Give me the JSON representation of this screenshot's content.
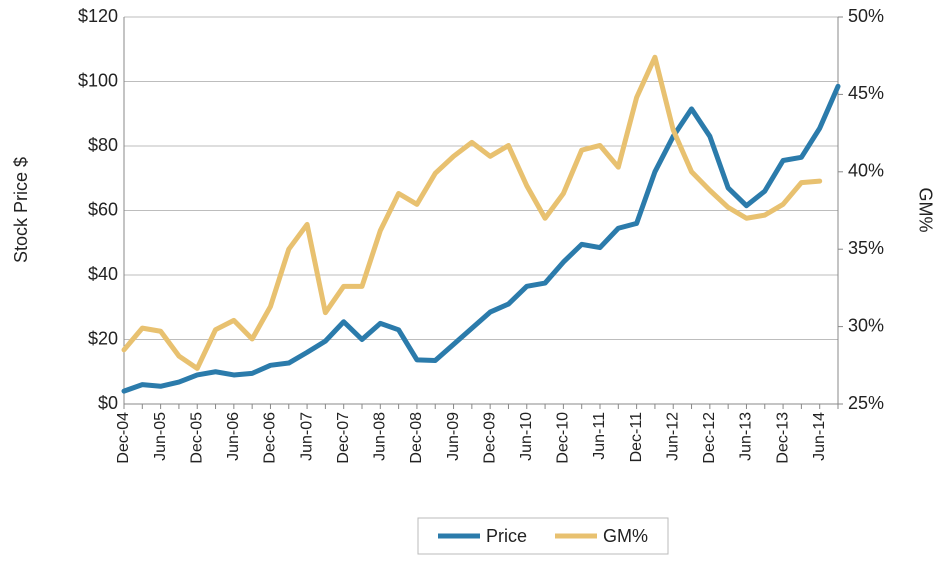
{
  "chart_data": {
    "type": "line",
    "y_label": "Stock Price $",
    "y2_label": "GM%",
    "categories": [
      "Dec-04",
      null,
      "Jun-05",
      null,
      "Dec-05",
      null,
      "Jun-06",
      null,
      "Dec-06",
      null,
      "Jun-07",
      null,
      "Dec-07",
      null,
      "Jun-08",
      null,
      "Dec-08",
      null,
      "Jun-09",
      null,
      "Dec-09",
      null,
      "Jun-10",
      null,
      "Dec-10",
      null,
      "Jun-11",
      null,
      "Dec-11",
      null,
      "Jun-12",
      null,
      "Dec-12",
      null,
      "Jun-13",
      null,
      "Dec-13",
      null,
      "Jun-14",
      null
    ],
    "series": [
      {
        "name": "Price",
        "color": "#2b7bab",
        "axis": "y",
        "values": [
          4,
          6,
          5.5,
          6.8,
          9,
          10,
          9,
          9.5,
          12,
          12.7,
          16,
          19.5,
          25.5,
          20,
          25,
          23,
          13.7,
          13.5,
          18.5,
          23.5,
          28.5,
          31,
          36.5,
          37.5,
          44,
          49.5,
          48.5,
          54.5,
          56,
          72,
          83,
          91.5,
          83,
          67,
          61.5,
          66,
          75.5,
          76.5,
          85.5,
          98.5
        ]
      },
      {
        "name": "GM%",
        "color": "#e8c170",
        "axis": "y2",
        "values": [
          28.5,
          29.9,
          29.7,
          28.1,
          27.3,
          29.8,
          30.4,
          29.2,
          31.3,
          35,
          36.6,
          30.9,
          32.6,
          32.6,
          36.2,
          38.6,
          37.9,
          39.9,
          41,
          41.9,
          41,
          41.7,
          39.1,
          37,
          38.6,
          41.4,
          41.7,
          40.3,
          44.8,
          47.4,
          42.7,
          40,
          38.8,
          37.7,
          37,
          37.2,
          37.9,
          39.3,
          39.4,
          null
        ]
      }
    ],
    "ylim": [
      0,
      120
    ],
    "yticks": [
      {
        "value": 0,
        "label": "$0"
      },
      {
        "value": 20,
        "label": "$20"
      },
      {
        "value": 40,
        "label": "$40"
      },
      {
        "value": 60,
        "label": "$60"
      },
      {
        "value": 80,
        "label": "$80"
      },
      {
        "value": 100,
        "label": "$100"
      },
      {
        "value": 120,
        "label": "$120"
      }
    ],
    "y2lim": [
      25,
      50
    ],
    "y2ticks": [
      {
        "value": 25,
        "label": "25%"
      },
      {
        "value": 30,
        "label": "30%"
      },
      {
        "value": 35,
        "label": "35%"
      },
      {
        "value": 40,
        "label": "40%"
      },
      {
        "value": 45,
        "label": "45%"
      },
      {
        "value": 50,
        "label": "50%"
      }
    ],
    "grid": true,
    "legend": "bottom"
  }
}
